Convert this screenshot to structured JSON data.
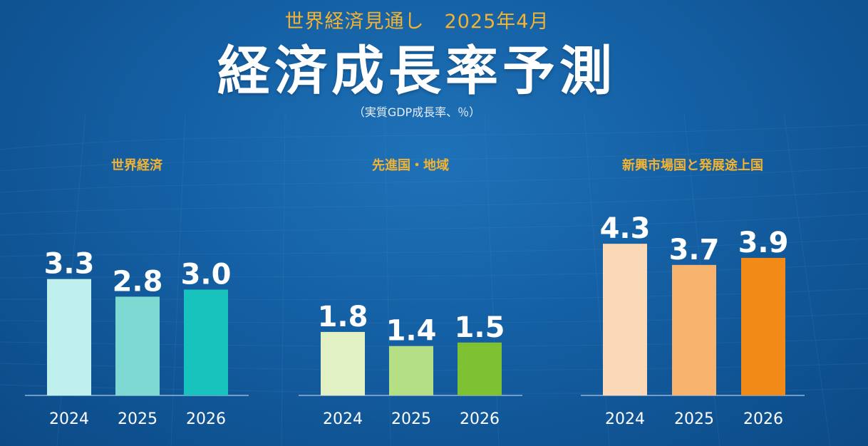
{
  "header": {
    "subtitle": "世界経済見通し　2025年4月",
    "title": "経済成長率予測",
    "unit_note": "（実質GDP成長率、％）"
  },
  "colors": {
    "heading": "#f2b233",
    "value_label": "#ffffff",
    "year_label": "#ffffff",
    "baseline": "#8fb6dc"
  },
  "chart_data": [
    {
      "type": "bar",
      "title": "世界経済",
      "categories": [
        "2024",
        "2025",
        "2026"
      ],
      "values": [
        3.3,
        2.8,
        3.0
      ],
      "value_labels": [
        "3.3",
        "2.8",
        "3.0"
      ],
      "colors": [
        "#bff0ee",
        "#7dd9d2",
        "#17c3bc"
      ],
      "ylim": [
        0,
        5
      ],
      "grid": false
    },
    {
      "type": "bar",
      "title": "先進国・地域",
      "categories": [
        "2024",
        "2025",
        "2026"
      ],
      "values": [
        1.8,
        1.4,
        1.5
      ],
      "value_labels": [
        "1.8",
        "1.4",
        "1.5"
      ],
      "colors": [
        "#e2f1c4",
        "#b4df85",
        "#7ec233"
      ],
      "ylim": [
        0,
        5
      ],
      "grid": false
    },
    {
      "type": "bar",
      "title": "新興市場国と発展途上国",
      "categories": [
        "2024",
        "2025",
        "2026"
      ],
      "values": [
        4.3,
        3.7,
        3.9
      ],
      "value_labels": [
        "4.3",
        "3.7",
        "3.9"
      ],
      "colors": [
        "#fbd8b6",
        "#f8b36e",
        "#f28a18"
      ],
      "ylim": [
        0,
        5
      ],
      "grid": false
    }
  ]
}
